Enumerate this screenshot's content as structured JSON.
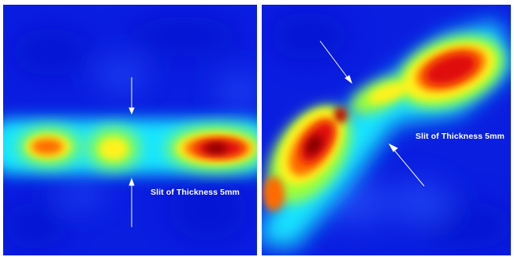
{
  "panels": {
    "left": {
      "caption": "Slit of Thickness 5mm"
    },
    "right": {
      "caption": "Slit of Thickness 5mm"
    }
  },
  "colors": {
    "background_blue": "#0a1ee0",
    "deep_blue": "#0010c8",
    "cyan": "#19e6ff",
    "green": "#9cff3c",
    "yellow": "#fff21a",
    "orange": "#ff6a00",
    "red": "#e01010",
    "dark_red": "#8a0000",
    "arrow": "#ffffff"
  },
  "colormap": "jet"
}
